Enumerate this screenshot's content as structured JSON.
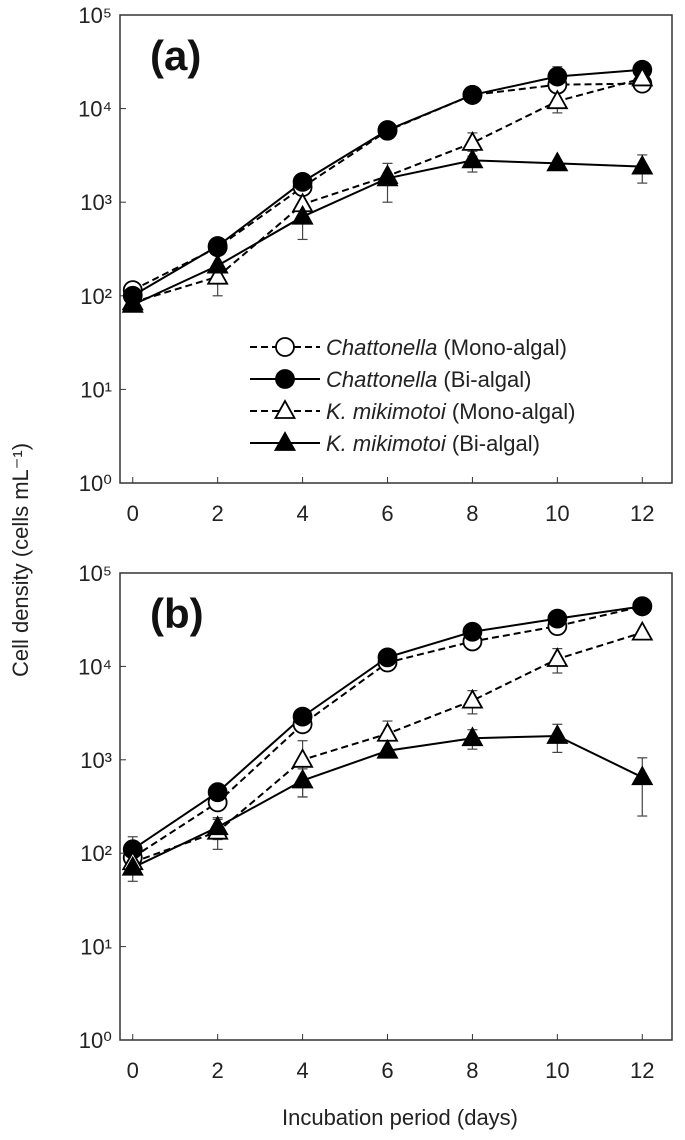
{
  "figure": {
    "ylabel": "Cell density (cells mL⁻¹)",
    "xlabel": "Incubation period (days)"
  },
  "chart_data": [
    {
      "type": "line",
      "title": "(a)",
      "log_y": true,
      "legend": "lower right",
      "x": [
        0,
        2,
        4,
        6,
        8,
        10,
        12
      ],
      "xlim": [
        -0.3,
        12.7
      ],
      "xticks": [
        0,
        2,
        4,
        6,
        8,
        10,
        12
      ],
      "ylim": [
        1,
        100000
      ],
      "yticks": [
        {
          "value": 1,
          "label": "10⁰"
        },
        {
          "value": 10,
          "label": "10¹"
        },
        {
          "value": 100,
          "label": "10²"
        },
        {
          "value": 1000,
          "label": "10³"
        },
        {
          "value": 10000,
          "label": "10⁴"
        },
        {
          "value": 100000,
          "label": "10⁵"
        }
      ],
      "series": [
        {
          "name": "Chattonella (Mono-algal)",
          "color": "#000000",
          "marker": "circle",
          "filled": false,
          "dashed": true,
          "values": [
            115,
            330,
            1450,
            5800,
            14000,
            18000,
            18500
          ],
          "errors": [
            null,
            null,
            200,
            null,
            null,
            3000,
            null
          ]
        },
        {
          "name": "Chattonella (Bi-algal)",
          "color": "#000000",
          "marker": "circle",
          "filled": true,
          "dashed": false,
          "values": [
            100,
            340,
            1650,
            5900,
            14000,
            22000,
            26000
          ],
          "errors": [
            null,
            null,
            null,
            null,
            null,
            6000,
            null
          ]
        },
        {
          "name": "K. mikimotoi (Mono-algal)",
          "color": "#000000",
          "marker": "triangle",
          "filled": false,
          "dashed": true,
          "values": [
            85,
            160,
            950,
            1900,
            4300,
            12000,
            21000
          ],
          "errors": [
            null,
            60,
            null,
            null,
            1200,
            3000,
            null
          ]
        },
        {
          "name": "K. mikimotoi (Bi-algal)",
          "color": "#000000",
          "marker": "triangle",
          "filled": true,
          "dashed": false,
          "values": [
            80,
            210,
            700,
            1800,
            2800,
            2600,
            2400
          ],
          "errors": [
            null,
            null,
            300,
            800,
            700,
            null,
            800
          ]
        }
      ]
    },
    {
      "type": "line",
      "title": "(b)",
      "log_y": true,
      "x": [
        0,
        2,
        4,
        6,
        8,
        10,
        12
      ],
      "xlim": [
        -0.3,
        12.7
      ],
      "xticks": [
        0,
        2,
        4,
        6,
        8,
        10,
        12
      ],
      "ylim": [
        1,
        100000
      ],
      "yticks": [
        {
          "value": 1,
          "label": "10⁰"
        },
        {
          "value": 10,
          "label": "10¹"
        },
        {
          "value": 100,
          "label": "10²"
        },
        {
          "value": 1000,
          "label": "10³"
        },
        {
          "value": 10000,
          "label": "10⁴"
        },
        {
          "value": 100000,
          "label": "10⁵"
        }
      ],
      "series": [
        {
          "name": "Chattonella (Mono-algal)",
          "color": "#000000",
          "marker": "circle",
          "filled": false,
          "dashed": true,
          "values": [
            90,
            350,
            2400,
            11000,
            18500,
            27000,
            44000
          ],
          "errors": [
            40,
            null,
            null,
            null,
            null,
            4000,
            null
          ]
        },
        {
          "name": "Chattonella (Bi-algal)",
          "color": "#000000",
          "marker": "circle",
          "filled": true,
          "dashed": false,
          "values": [
            110,
            450,
            2900,
            12500,
            23500,
            32500,
            44000
          ],
          "errors": [
            40,
            null,
            null,
            null,
            null,
            null,
            null
          ]
        },
        {
          "name": "K. mikimotoi (Mono-algal)",
          "color": "#000000",
          "marker": "triangle",
          "filled": false,
          "dashed": true,
          "values": [
            80,
            170,
            1000,
            1900,
            4300,
            12000,
            23000
          ],
          "errors": [
            null,
            60,
            600,
            700,
            1200,
            3500,
            null
          ]
        },
        {
          "name": "K. mikimotoi (Bi-algal)",
          "color": "#000000",
          "marker": "triangle",
          "filled": true,
          "dashed": false,
          "values": [
            70,
            190,
            600,
            1250,
            1700,
            1800,
            650
          ],
          "errors": [
            null,
            50,
            200,
            null,
            400,
            600,
            400
          ]
        }
      ]
    }
  ]
}
